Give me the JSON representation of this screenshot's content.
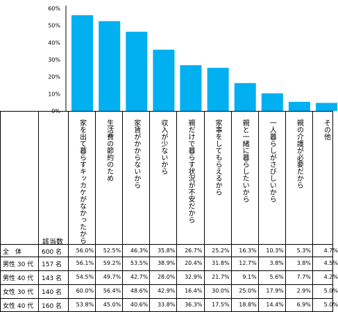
{
  "chart_data": {
    "type": "bar",
    "categories": [
      "家を出て暮らすキッカケがなかったから",
      "生活費の節約のため",
      "家賃がかからないから",
      "収入が少ないから",
      "親だけで暮らす状況が不安だから",
      "家事をしてもらえるから",
      "親と一緒に暮らしたいから",
      "一人暮らしがさびしいから",
      "親の介護が必要だから",
      "その他"
    ],
    "values": [
      56.0,
      52.5,
      46.3,
      35.8,
      26.7,
      25.2,
      16.3,
      10.3,
      5.3,
      4.7
    ],
    "ylim": [
      0,
      60
    ],
    "yticks": [
      "0%",
      "10%",
      "20%",
      "30%",
      "40%",
      "50%",
      "60%"
    ],
    "bar_color": "#00b0f0"
  },
  "table": {
    "count_header": "該当数",
    "rows": [
      {
        "label": "全　体",
        "count": "600 名",
        "values": [
          "56.0%",
          "52.5%",
          "46.3%",
          "35.8%",
          "26.7%",
          "25.2%",
          "16.3%",
          "10.3%",
          "5.3%",
          "4.7%"
        ]
      },
      {
        "label": "男性 30 代",
        "count": "157 名",
        "values": [
          "56.1%",
          "59.2%",
          "53.5%",
          "38.9%",
          "20.4%",
          "31.8%",
          "12.7%",
          "3.8%",
          "3.8%",
          "4.5%"
        ]
      },
      {
        "label": "男性 40 代",
        "count": "143 名",
        "values": [
          "54.5%",
          "49.7%",
          "42.7%",
          "28.0%",
          "32.9%",
          "21.7%",
          "9.1%",
          "5.6%",
          "7.7%",
          "4.2%"
        ]
      },
      {
        "label": "女性 30 代",
        "count": "140 名",
        "values": [
          "60.0%",
          "56.4%",
          "48.6%",
          "42.9%",
          "16.4%",
          "30.0%",
          "25.0%",
          "17.9%",
          "2.9%",
          "5.0%"
        ]
      },
      {
        "label": "女性 40 代",
        "count": "160 名",
        "values": [
          "53.8%",
          "45.0%",
          "40.6%",
          "33.8%",
          "36.3%",
          "17.5%",
          "18.8%",
          "14.4%",
          "6.9%",
          "5.0%"
        ]
      }
    ]
  }
}
